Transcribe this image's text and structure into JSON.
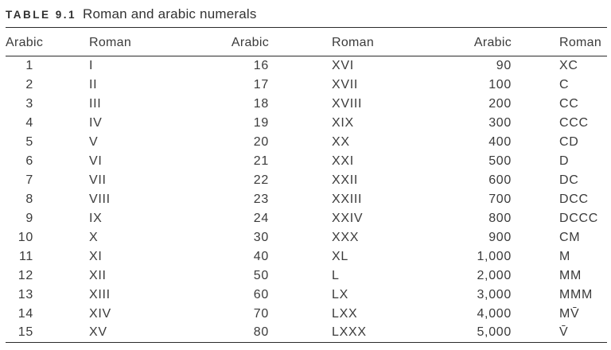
{
  "table": {
    "label": "TABLE 9.1",
    "title": "Roman and arabic numerals",
    "col_headers": [
      "Arabic",
      "Roman",
      "Arabic",
      "Roman",
      "Arabic",
      "Roman"
    ],
    "rows": [
      [
        "1",
        "I",
        "16",
        "XVI",
        "90",
        "XC"
      ],
      [
        "2",
        "II",
        "17",
        "XVII",
        "100",
        "C"
      ],
      [
        "3",
        "III",
        "18",
        "XVIII",
        "200",
        "CC"
      ],
      [
        "4",
        "IV",
        "19",
        "XIX",
        "300",
        "CCC"
      ],
      [
        "5",
        "V",
        "20",
        "XX",
        "400",
        "CD"
      ],
      [
        "6",
        "VI",
        "21",
        "XXI",
        "500",
        "D"
      ],
      [
        "7",
        "VII",
        "22",
        "XXII",
        "600",
        "DC"
      ],
      [
        "8",
        "VIII",
        "23",
        "XXIII",
        "700",
        "DCC"
      ],
      [
        "9",
        "IX",
        "24",
        "XXIV",
        "800",
        "DCCC"
      ],
      [
        "10",
        "X",
        "30",
        "XXX",
        "900",
        "CM"
      ],
      [
        "11",
        "XI",
        "40",
        "XL",
        "1,000",
        "M"
      ],
      [
        "12",
        "XII",
        "50",
        "L",
        "2,000",
        "MM"
      ],
      [
        "13",
        "XIII",
        "60",
        "LX",
        "3,000",
        "MMM"
      ],
      [
        "14",
        "XIV",
        "70",
        "LXX",
        "4,000",
        "MV̄"
      ],
      [
        "15",
        "XV",
        "80",
        "LXXX",
        "5,000",
        "V̄"
      ]
    ],
    "colors": {
      "text": "#3b3b3b",
      "rule": "#2b2b2b",
      "background": "#ffffff"
    }
  }
}
